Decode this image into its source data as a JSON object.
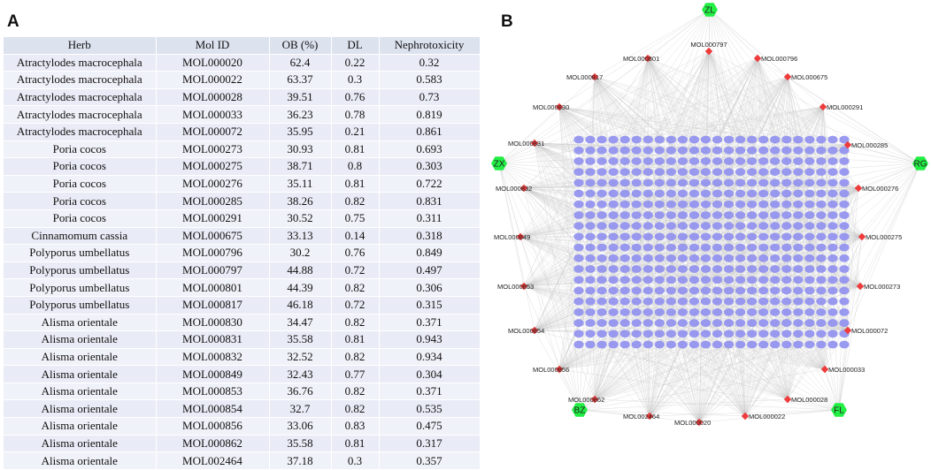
{
  "panel_a": {
    "label": "A"
  },
  "panel_b": {
    "label": "B"
  },
  "table": {
    "headers": [
      "Herb",
      "Mol ID",
      "OB (%)",
      "DL",
      "Nephrotoxicity"
    ],
    "rows": [
      [
        "Atractylodes macrocephala",
        "MOL000020",
        "62.4",
        "0.22",
        "0.32"
      ],
      [
        "Atractylodes macrocephala",
        "MOL000022",
        "63.37",
        "0.3",
        "0.583"
      ],
      [
        "Atractylodes macrocephala",
        "MOL000028",
        "39.51",
        "0.76",
        "0.73"
      ],
      [
        "Atractylodes macrocephala",
        "MOL000033",
        "36.23",
        "0.78",
        "0.819"
      ],
      [
        "Atractylodes macrocephala",
        "MOL000072",
        "35.95",
        "0.21",
        "0.861"
      ],
      [
        "Poria cocos",
        "MOL000273",
        "30.93",
        "0.81",
        "0.693"
      ],
      [
        "Poria cocos",
        "MOL000275",
        "38.71",
        "0.8",
        "0.303"
      ],
      [
        "Poria cocos",
        "MOL000276",
        "35.11",
        "0.81",
        "0.722"
      ],
      [
        "Poria cocos",
        "MOL000285",
        "38.26",
        "0.82",
        "0.831"
      ],
      [
        "Poria cocos",
        "MOL000291",
        "30.52",
        "0.75",
        "0.311"
      ],
      [
        "Cinnamomum cassia",
        "MOL000675",
        "33.13",
        "0.14",
        "0.318"
      ],
      [
        "Polyporus umbellatus",
        "MOL000796",
        "30.2",
        "0.76",
        "0.849"
      ],
      [
        "Polyporus umbellatus",
        "MOL000797",
        "44.88",
        "0.72",
        "0.497"
      ],
      [
        "Polyporus umbellatus",
        "MOL000801",
        "44.39",
        "0.82",
        "0.306"
      ],
      [
        "Polyporus umbellatus",
        "MOL000817",
        "46.18",
        "0.72",
        "0.315"
      ],
      [
        "Alisma orientale",
        "MOL000830",
        "34.47",
        "0.82",
        "0.371"
      ],
      [
        "Alisma orientale",
        "MOL000831",
        "35.58",
        "0.81",
        "0.943"
      ],
      [
        "Alisma orientale",
        "MOL000832",
        "32.52",
        "0.82",
        "0.934"
      ],
      [
        "Alisma orientale",
        "MOL000849",
        "32.43",
        "0.77",
        "0.304"
      ],
      [
        "Alisma orientale",
        "MOL000853",
        "36.76",
        "0.82",
        "0.371"
      ],
      [
        "Alisma orientale",
        "MOL000854",
        "32.7",
        "0.82",
        "0.535"
      ],
      [
        "Alisma orientale",
        "MOL000856",
        "33.06",
        "0.83",
        "0.475"
      ],
      [
        "Alisma orientale",
        "MOL000862",
        "35.58",
        "0.81",
        "0.317"
      ],
      [
        "Alisma orientale",
        "MOL002464",
        "37.18",
        "0.3",
        "0.357"
      ]
    ]
  },
  "network": {
    "herb_nodes": [
      "ZL",
      "ZX",
      "RG",
      "BZ",
      "FL"
    ],
    "compound_nodes": [
      "MOL000797",
      "MOL000801",
      "MOL000796",
      "MOL000817",
      "MOL000675",
      "MOL000830",
      "MOL000291",
      "MOL000831",
      "MOL000285",
      "MOL000832",
      "MOL000276",
      "MOL000849",
      "MOL000275",
      "MOL000853",
      "MOL000273",
      "MOL000854",
      "MOL000072",
      "MOL000856",
      "MOL000033",
      "MOL000862",
      "MOL000028",
      "MOL002464",
      "MOL000022",
      "MOL000020"
    ],
    "colors": {
      "herb": "#22ee44",
      "compound": "#ee3b3b",
      "target": "#8f8ff0",
      "edge": "#c9c9c9"
    }
  }
}
